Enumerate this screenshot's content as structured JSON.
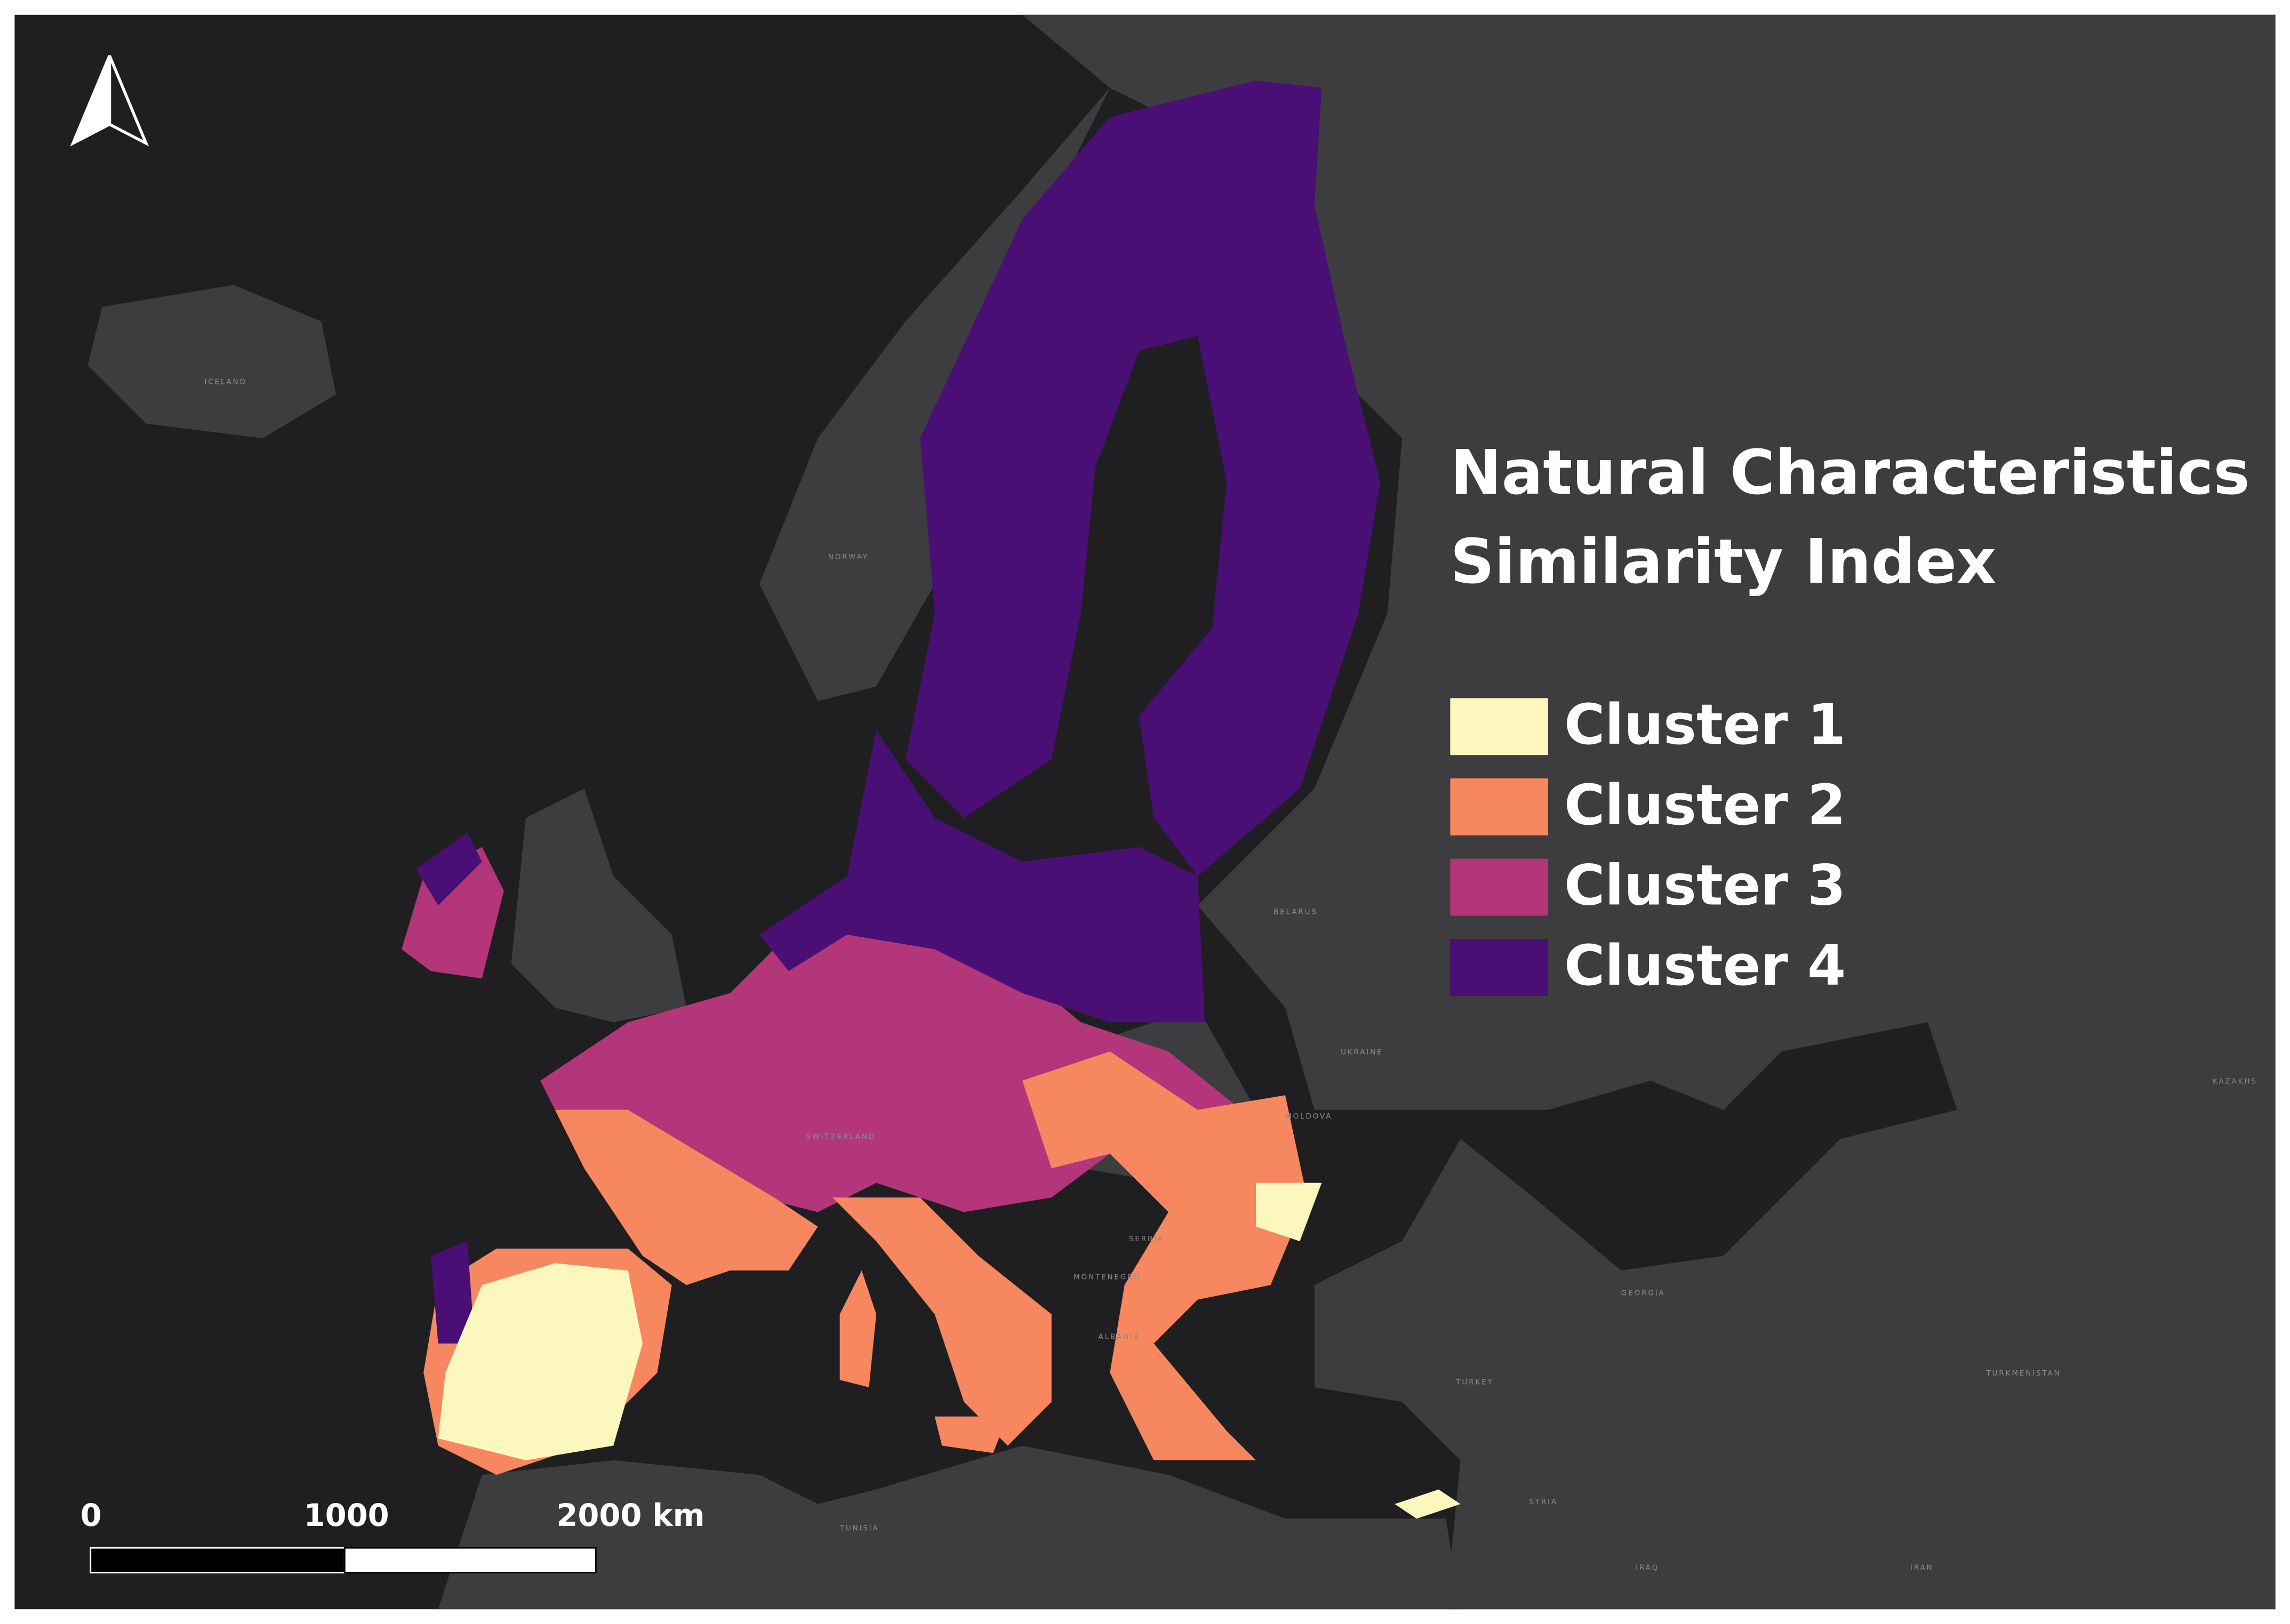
{
  "map": {
    "title_lines": [
      "Natural Characteristics",
      "Similarity Index"
    ],
    "legend": [
      {
        "label": "Cluster 1",
        "color": "#fcf8bd"
      },
      {
        "label": "Cluster 2",
        "color": "#f6875f"
      },
      {
        "label": "Cluster 3",
        "color": "#b3367b"
      },
      {
        "label": "Cluster 4",
        "color": "#4a0f74"
      }
    ],
    "scale_bar": [
      "0",
      "1000",
      "2000 km"
    ],
    "place_labels": [
      "ICELAND",
      "NORWAY",
      "BELARUS",
      "UKRAINE",
      "TURKEY",
      "SWITZERLAND",
      "SERBIA",
      "MONTENEGRO",
      "ALBANIA",
      "GEORGIA",
      "IRAN",
      "IRAQ",
      "SYRIA",
      "TUNISIA",
      "KAZAKHS",
      "TURKMENISTAN",
      "MOLDOVA"
    ]
  }
}
